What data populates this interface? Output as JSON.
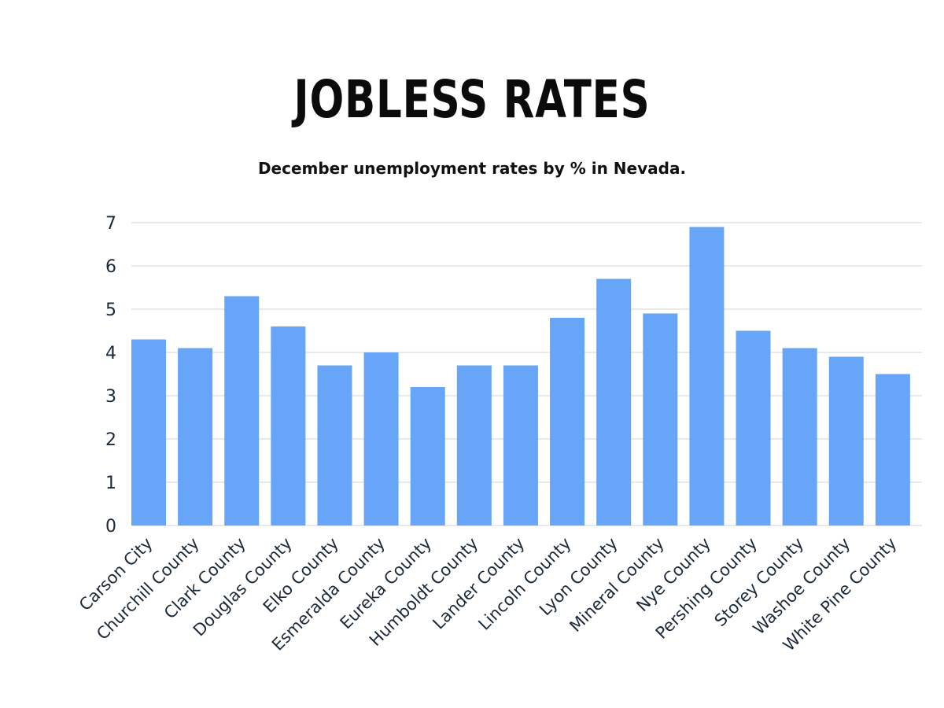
{
  "chart_data": {
    "type": "bar",
    "title": "JOBLESS RATES",
    "subtitle": "December unemployment rates by % in Nevada.",
    "xlabel": "",
    "ylabel": "",
    "ylim": [
      0,
      7
    ],
    "yticks": [
      0,
      1,
      2,
      3,
      4,
      5,
      6,
      7
    ],
    "grid": true,
    "bar_color": "#66a5f8",
    "categories": [
      "Carson City",
      "Churchill County",
      "Clark County",
      "Douglas County",
      "Elko County",
      "Esmeralda County",
      "Eureka County",
      "Humboldt County",
      "Lander County",
      "Lincoln County",
      "Lyon County",
      "Mineral County",
      "Nye County",
      "Pershing County",
      "Storey County",
      "Washoe County",
      "White Pine County"
    ],
    "values": [
      4.3,
      4.1,
      5.3,
      4.6,
      3.7,
      4.0,
      3.2,
      3.7,
      3.7,
      4.8,
      5.7,
      4.9,
      6.9,
      4.5,
      4.1,
      3.9,
      3.5
    ]
  }
}
